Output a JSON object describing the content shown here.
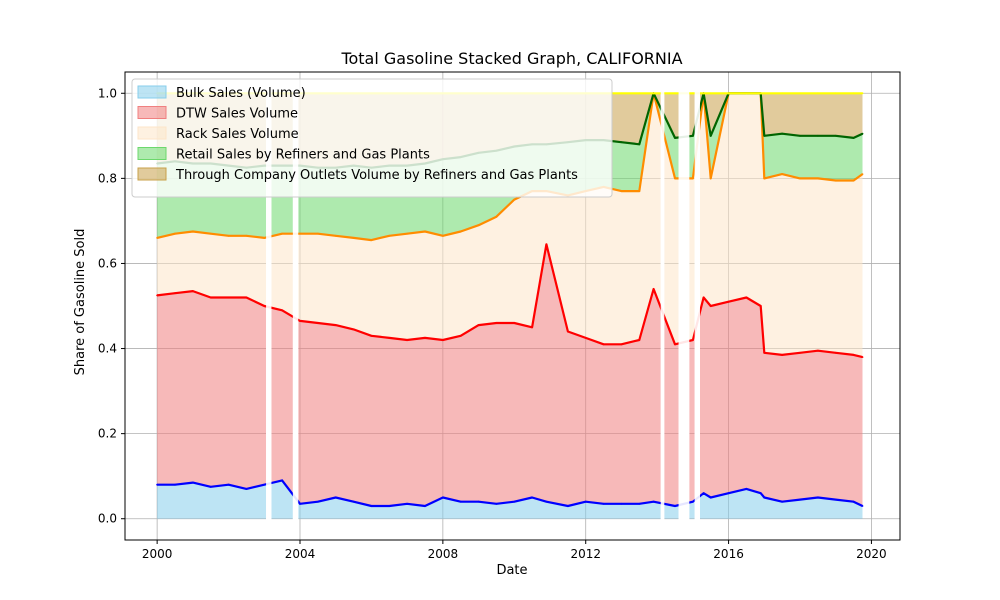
{
  "chart_data": {
    "type": "area",
    "title": "Total Gasoline Stacked Graph, CALIFORNIA",
    "xlabel": "Date",
    "ylabel": "Share of Gasoline Sold",
    "xlim": [
      1999.1,
      2020.8
    ],
    "ylim": [
      -0.05,
      1.05
    ],
    "x_ticks": [
      2000,
      2004,
      2008,
      2012,
      2016,
      2020
    ],
    "x_tick_labels": [
      "2000",
      "2004",
      "2008",
      "2012",
      "2016",
      "2020"
    ],
    "y_ticks": [
      0.0,
      0.2,
      0.4,
      0.6,
      0.8,
      1.0
    ],
    "y_tick_labels": [
      "0.0",
      "0.2",
      "0.4",
      "0.6",
      "0.8",
      "1.0"
    ],
    "grid": true,
    "legend_position": "upper-left",
    "x": [
      2000.0,
      2000.5,
      2001.0,
      2001.5,
      2002.0,
      2002.5,
      2003.0,
      2003.5,
      2004.0,
      2004.5,
      2005.0,
      2005.5,
      2006.0,
      2006.5,
      2007.0,
      2007.5,
      2008.0,
      2008.5,
      2009.0,
      2009.5,
      2010.0,
      2010.5,
      2010.9,
      2011.5,
      2012.0,
      2012.5,
      2013.0,
      2013.5,
      2013.9,
      2014.5,
      2015.0,
      2015.3,
      2015.5,
      2016.0,
      2016.5,
      2016.9,
      2017.0,
      2017.5,
      2018.0,
      2018.5,
      2019.0,
      2019.5,
      2019.75
    ],
    "gaps": [
      [
        2003.05,
        2003.2
      ],
      [
        2003.8,
        2003.95
      ],
      [
        2014.1,
        2014.2
      ],
      [
        2014.6,
        2014.9
      ],
      [
        2015.05,
        2015.2
      ]
    ],
    "series": [
      {
        "name": "Bulk Sales (Volume)",
        "fill": "#87ceeb",
        "line": "#0000ff",
        "cumulative": [
          0.08,
          0.08,
          0.085,
          0.075,
          0.08,
          0.07,
          0.08,
          0.09,
          0.035,
          0.04,
          0.05,
          0.04,
          0.03,
          0.03,
          0.035,
          0.03,
          0.05,
          0.04,
          0.04,
          0.035,
          0.04,
          0.05,
          0.04,
          0.03,
          0.04,
          0.035,
          0.035,
          0.035,
          0.04,
          0.03,
          0.04,
          0.06,
          0.05,
          0.06,
          0.07,
          0.06,
          0.05,
          0.04,
          0.045,
          0.05,
          0.045,
          0.04,
          0.03
        ]
      },
      {
        "name": "DTW Sales Volume",
        "fill": "#f08080",
        "line": "#ff0000",
        "cumulative": [
          0.525,
          0.53,
          0.535,
          0.52,
          0.52,
          0.52,
          0.5,
          0.49,
          0.465,
          0.46,
          0.455,
          0.445,
          0.43,
          0.425,
          0.42,
          0.425,
          0.42,
          0.43,
          0.455,
          0.46,
          0.46,
          0.45,
          0.645,
          0.44,
          0.425,
          0.41,
          0.41,
          0.42,
          0.54,
          0.41,
          0.42,
          0.52,
          0.5,
          0.51,
          0.52,
          0.5,
          0.39,
          0.385,
          0.39,
          0.395,
          0.39,
          0.385,
          0.38
        ]
      },
      {
        "name": "Rack Sales Volume",
        "fill": "#fde5c9",
        "line": "#ff8c00",
        "cumulative": [
          0.66,
          0.67,
          0.675,
          0.67,
          0.665,
          0.665,
          0.66,
          0.67,
          0.67,
          0.67,
          0.665,
          0.66,
          0.655,
          0.665,
          0.67,
          0.675,
          0.665,
          0.675,
          0.69,
          0.71,
          0.75,
          0.77,
          0.77,
          0.76,
          0.77,
          0.78,
          0.77,
          0.77,
          1.0,
          0.8,
          0.8,
          1.0,
          0.8,
          1.0,
          1.0,
          1.0,
          0.8,
          0.81,
          0.8,
          0.8,
          0.795,
          0.795,
          0.81
        ]
      },
      {
        "name": "Retail Sales by Refiners and Gas Plants",
        "fill": "#6cd86c",
        "line": "#006400",
        "cumulative": [
          0.835,
          0.84,
          0.835,
          0.835,
          0.83,
          0.825,
          0.83,
          0.83,
          0.83,
          0.825,
          0.825,
          0.83,
          0.825,
          0.83,
          0.83,
          0.835,
          0.845,
          0.85,
          0.86,
          0.865,
          0.875,
          0.88,
          0.88,
          0.885,
          0.89,
          0.89,
          0.885,
          0.88,
          1.0,
          0.895,
          0.9,
          1.0,
          0.9,
          1.0,
          1.0,
          1.0,
          0.9,
          0.905,
          0.9,
          0.9,
          0.9,
          0.895,
          0.905
        ]
      },
      {
        "name": "Through Company Outlets Volume by Refiners and Gas Plants",
        "fill": "#c8a04a",
        "line": "#ffff00",
        "cumulative": [
          1.0,
          1.0,
          1.0,
          1.0,
          1.0,
          1.0,
          1.0,
          1.0,
          1.0,
          1.0,
          1.0,
          1.0,
          1.0,
          1.0,
          1.0,
          1.0,
          1.0,
          1.0,
          1.0,
          1.0,
          1.0,
          1.0,
          1.0,
          1.0,
          1.0,
          1.0,
          1.0,
          1.0,
          1.0,
          1.0,
          1.0,
          1.0,
          1.0,
          1.0,
          1.0,
          1.0,
          1.0,
          1.0,
          1.0,
          1.0,
          1.0,
          1.0,
          1.0
        ]
      }
    ]
  }
}
